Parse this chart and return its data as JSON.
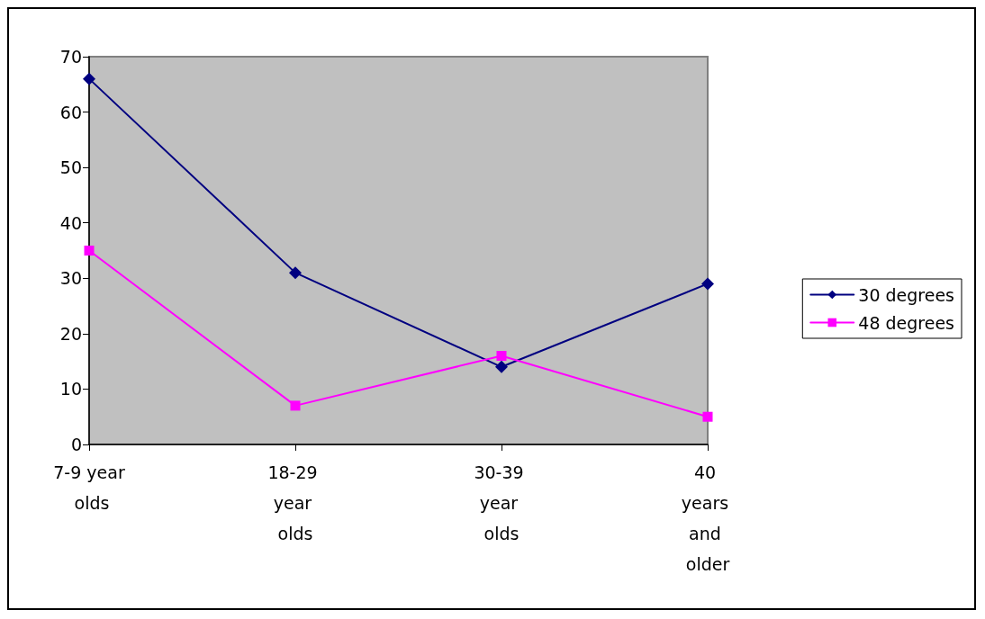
{
  "chart_data": {
    "type": "line",
    "categories": [
      "7-9 year olds",
      "18-29 year olds",
      "30-39 year olds",
      "40 years and older"
    ],
    "series": [
      {
        "name": "30 degrees",
        "color": "#000080",
        "marker": "diamond",
        "values": [
          66,
          31,
          14,
          29
        ]
      },
      {
        "name": "48 degrees",
        "color": "#ff00ff",
        "marker": "square",
        "values": [
          35,
          7,
          16,
          5
        ]
      }
    ],
    "ylim": [
      0,
      70
    ],
    "yticks": [
      0,
      10,
      20,
      30,
      40,
      50,
      60,
      70
    ],
    "grid": false,
    "legend": "right"
  }
}
